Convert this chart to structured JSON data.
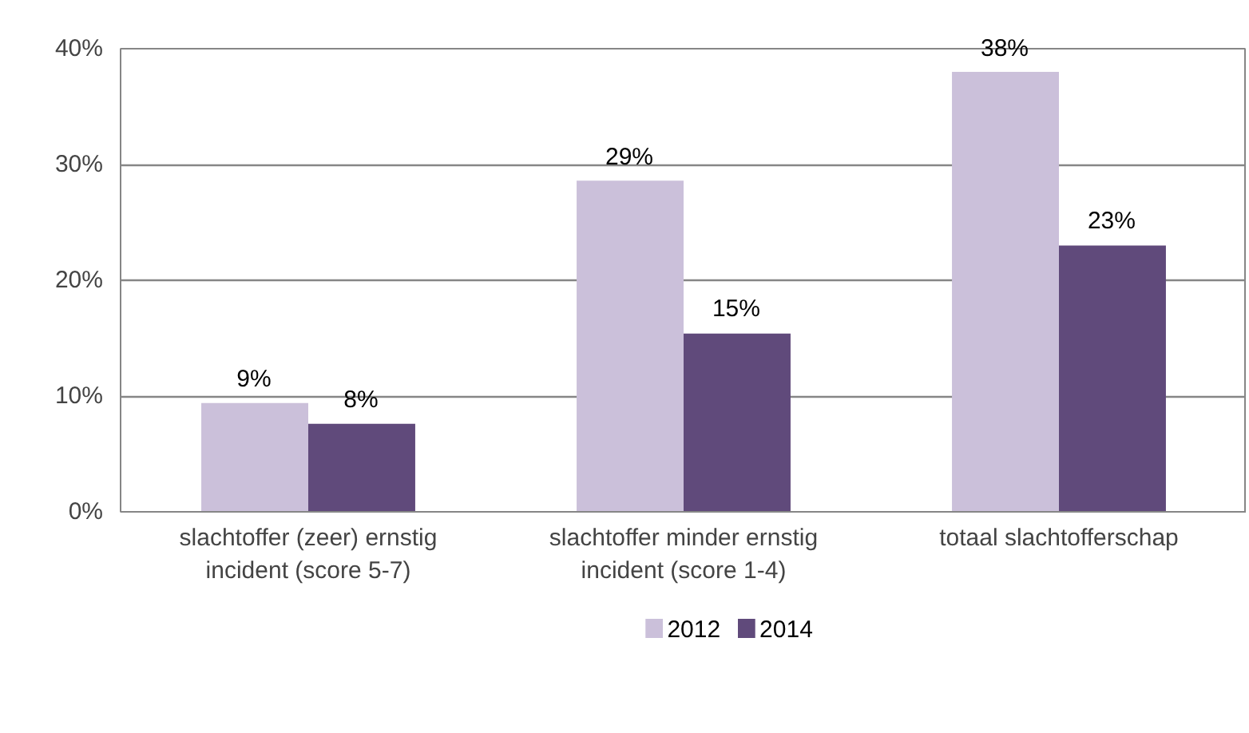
{
  "chart_data": {
    "type": "bar",
    "categories": [
      "slachtoffer (zeer) ernstig incident (score 5-7)",
      "slachtoffer minder ernstig incident (score 1-4)",
      "totaal slachtofferschap"
    ],
    "series": [
      {
        "name": "2012",
        "color": "#cbc0da",
        "values": [
          9.4,
          28.6,
          38
        ],
        "value_labels": [
          "9%",
          "29%",
          "38%"
        ]
      },
      {
        "name": "2014",
        "color": "#604a7b",
        "values": [
          7.6,
          15.4,
          23
        ],
        "value_labels": [
          "8%",
          "15%",
          "23%"
        ]
      }
    ],
    "ylim": [
      0,
      40
    ],
    "yticks": [
      {
        "value": 0,
        "label": "0%"
      },
      {
        "value": 10,
        "label": "10%"
      },
      {
        "value": 20,
        "label": "20%"
      },
      {
        "value": 30,
        "label": "30%"
      },
      {
        "value": 40,
        "label": "40%"
      }
    ],
    "grid": "y",
    "legend": "bottom"
  }
}
